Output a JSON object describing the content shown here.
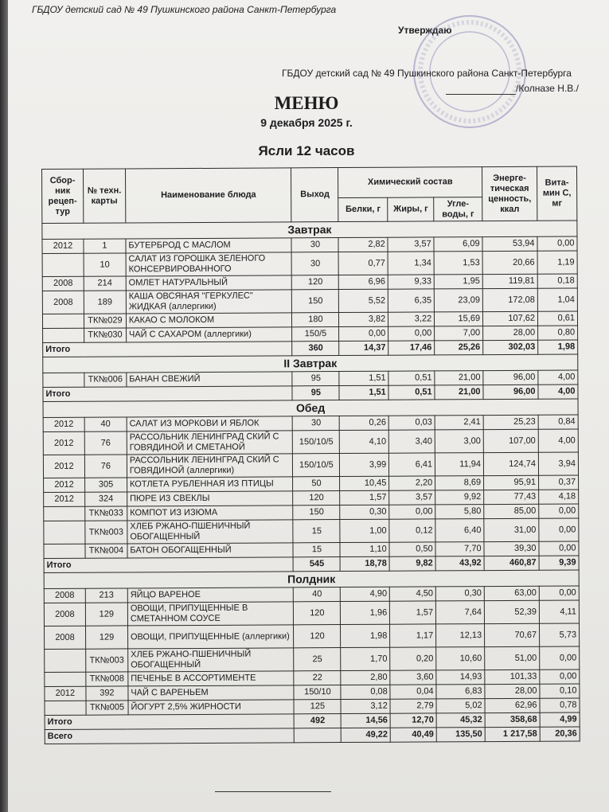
{
  "header": {
    "org_top": "ГБДОУ детский сад № 49 Пушкинского района Санкт-Петербурга",
    "approve": "Утверждаю",
    "org_right": "ГБДОУ детский сад № 49 Пушкинского района Санкт-Петербурга",
    "director": "/Колназе Н.В./",
    "title": "МЕНЮ",
    "date": "9 декабря 2025 г.",
    "group": "Ясли 12 часов"
  },
  "table": {
    "columns": {
      "collection": "Сбор-ник рецеп-тур",
      "tech_card": "№ техн. карты",
      "dish": "Наименование блюда",
      "output": "Выход",
      "chem": "Химический состав",
      "protein": "Белки, г",
      "fat": "Жиры, г",
      "carbs": "Угле-воды, г",
      "energy": "Энерге-тическая ценность, ккал",
      "vitamin": "Вита-мин С, мг"
    },
    "sections": [
      {
        "title": "Завтрак",
        "rows": [
          [
            "2012",
            "1",
            "БУТЕРБРОД С МАСЛОМ",
            "30",
            "2,82",
            "3,57",
            "6,09",
            "53,94",
            "0,00"
          ],
          [
            "",
            "10",
            "САЛАТ ИЗ ГОРОШКА ЗЕЛЕНОГО КОНСЕРВИРОВАННОГО",
            "30",
            "0,77",
            "1,34",
            "1,53",
            "20,66",
            "1,19"
          ],
          [
            "2008",
            "214",
            "ОМЛЕТ НАТУРАЛЬНЫЙ",
            "120",
            "6,96",
            "9,33",
            "1,95",
            "119,81",
            "0,18"
          ],
          [
            "2008",
            "189",
            "КАША ОВСЯНАЯ \"ГЕРКУЛЕС\" ЖИДКАЯ (аллергики)",
            "150",
            "5,52",
            "6,35",
            "23,09",
            "172,08",
            "1,04"
          ],
          [
            "",
            "ТК№029",
            "КАКАО С МОЛОКОМ",
            "180",
            "3,82",
            "3,22",
            "15,69",
            "107,62",
            "0,61"
          ],
          [
            "",
            "ТК№030",
            "ЧАЙ С САХАРОМ (аллергики)",
            "150/5",
            "0,00",
            "0,00",
            "7,00",
            "28,00",
            "0,80"
          ]
        ],
        "total": [
          "Итого",
          "360",
          "14,37",
          "17,46",
          "25,26",
          "302,03",
          "1,98"
        ]
      },
      {
        "title": "II Завтрак",
        "rows": [
          [
            "",
            "ТК№006",
            "БАНАН СВЕЖИЙ",
            "95",
            "1,51",
            "0,51",
            "21,00",
            "96,00",
            "4,00"
          ]
        ],
        "total": [
          "Итого",
          "95",
          "1,51",
          "0,51",
          "21,00",
          "96,00",
          "4,00"
        ]
      },
      {
        "title": "Обед",
        "rows": [
          [
            "2012",
            "40",
            "САЛАТ ИЗ МОРКОВИ И ЯБЛОК",
            "30",
            "0,26",
            "0,03",
            "2,41",
            "25,23",
            "0,84"
          ],
          [
            "2012",
            "76",
            "РАССОЛЬНИК ЛЕНИНГРАД СКИЙ С ГОВЯДИНОЙ И СМЕТАНОЙ",
            "150/10/5",
            "4,10",
            "3,40",
            "3,00",
            "107,00",
            "4,00"
          ],
          [
            "2012",
            "76",
            "РАССОЛЬНИК ЛЕНИНГРАД СКИЙ С ГОВЯДИНОЙ (аллергики)",
            "150/10/5",
            "3,99",
            "6,41",
            "11,94",
            "124,74",
            "3,94"
          ],
          [
            "2012",
            "305",
            "КОТЛЕТА РУБЛЕННАЯ ИЗ ПТИЦЫ",
            "50",
            "10,45",
            "2,20",
            "8,69",
            "95,91",
            "0,37"
          ],
          [
            "2012",
            "324",
            "ПЮРЕ ИЗ СВЕКЛЫ",
            "120",
            "1,57",
            "3,57",
            "9,92",
            "77,43",
            "4,18"
          ],
          [
            "",
            "ТК№033",
            "КОМПОТ ИЗ ИЗЮМА",
            "150",
            "0,30",
            "0,00",
            "5,80",
            "85,00",
            "0,00"
          ],
          [
            "",
            "ТК№003",
            "ХЛЕБ РЖАНО-ПШЕНИЧНЫЙ ОБОГАЩЕННЫЙ",
            "15",
            "1,00",
            "0,12",
            "6,40",
            "31,00",
            "0,00"
          ],
          [
            "",
            "ТК№004",
            "БАТОН ОБОГАЩЕННЫЙ",
            "15",
            "1,10",
            "0,50",
            "7,70",
            "39,30",
            "0,00"
          ]
        ],
        "total": [
          "Итого",
          "545",
          "18,78",
          "9,82",
          "43,92",
          "460,87",
          "9,39"
        ]
      },
      {
        "title": "Полдник",
        "rows": [
          [
            "2008",
            "213",
            "ЯЙЦО ВАРЕНОЕ",
            "40",
            "4,90",
            "4,50",
            "0,30",
            "63,00",
            "0,00"
          ],
          [
            "2008",
            "129",
            "ОВОЩИ, ПРИПУЩЕННЫЕ В СМЕТАННОМ СОУСЕ",
            "120",
            "1,96",
            "1,57",
            "7,64",
            "52,39",
            "4,11"
          ],
          [
            "2008",
            "129",
            "ОВОЩИ, ПРИПУЩЕННЫЕ (аллергики)",
            "120",
            "1,98",
            "1,17",
            "12,13",
            "70,67",
            "5,73"
          ],
          [
            "",
            "ТК№003",
            "ХЛЕБ РЖАНО-ПШЕНИЧНЫЙ ОБОГАЩЕННЫЙ",
            "25",
            "1,70",
            "0,20",
            "10,60",
            "51,00",
            "0,00"
          ],
          [
            "",
            "ТК№008",
            "ПЕЧЕНЬЕ В АССОРТИМЕНТЕ",
            "22",
            "2,80",
            "3,60",
            "14,93",
            "101,33",
            "0,00"
          ],
          [
            "2012",
            "392",
            "ЧАЙ С ВАРЕНЬЕМ",
            "150/10",
            "0,08",
            "0,04",
            "6,83",
            "28,00",
            "0,10"
          ],
          [
            "",
            "ТК№005",
            "ЙОГУРТ 2,5% ЖИРНОСТИ",
            "125",
            "3,12",
            "2,79",
            "5,02",
            "62,96",
            "0,78"
          ]
        ],
        "total": [
          "Итого",
          "492",
          "14,56",
          "12,70",
          "45,32",
          "358,68",
          "4,99"
        ]
      }
    ],
    "grand_total": [
      "Всего",
      "",
      "49,22",
      "40,49",
      "135,50",
      "1 217,58",
      "20,36"
    ]
  },
  "colors": {
    "stamp": "#8a86b8",
    "ink": "#1d1d1f"
  }
}
